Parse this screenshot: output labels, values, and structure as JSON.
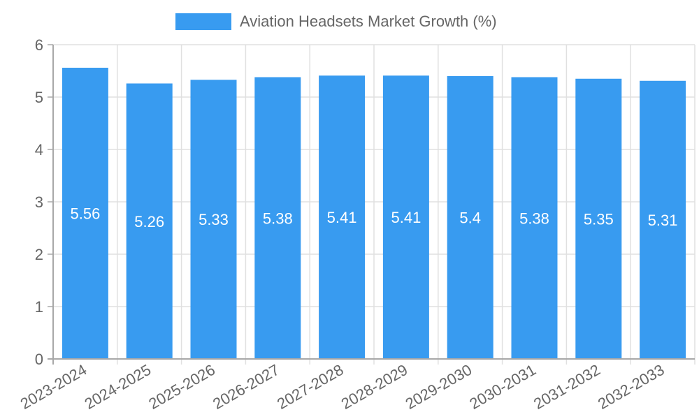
{
  "legend": {
    "label": "Aviation Headsets Market Growth (%)",
    "color": "#389BF0"
  },
  "chart_data": {
    "type": "bar",
    "title": "",
    "xlabel": "",
    "ylabel": "",
    "categories": [
      "2023-2024",
      "2024-2025",
      "2025-2026",
      "2026-2027",
      "2027-2028",
      "2028-2029",
      "2029-2030",
      "2030-2031",
      "2031-2032",
      "2032-2033"
    ],
    "series": [
      {
        "name": "Aviation Headsets Market Growth (%)",
        "values": [
          5.56,
          5.26,
          5.33,
          5.38,
          5.41,
          5.41,
          5.4,
          5.38,
          5.35,
          5.31
        ],
        "color": "#389BF0"
      }
    ],
    "data_labels": [
      "5.56",
      "5.26",
      "5.33",
      "5.38",
      "5.41",
      "5.41",
      "5.4",
      "5.38",
      "5.35",
      "5.31"
    ],
    "ylim": [
      0,
      6
    ],
    "yticks": [
      0,
      1,
      2,
      3,
      4,
      5,
      6
    ],
    "grid": true,
    "legend_position": "top",
    "x_tick_rotation": -30
  },
  "colors": {
    "bar": "#389BF0",
    "grid": "#e0e0e0",
    "axis": "#a8a8a8",
    "tick_text": "#666666",
    "data_label": "#ffffff"
  }
}
